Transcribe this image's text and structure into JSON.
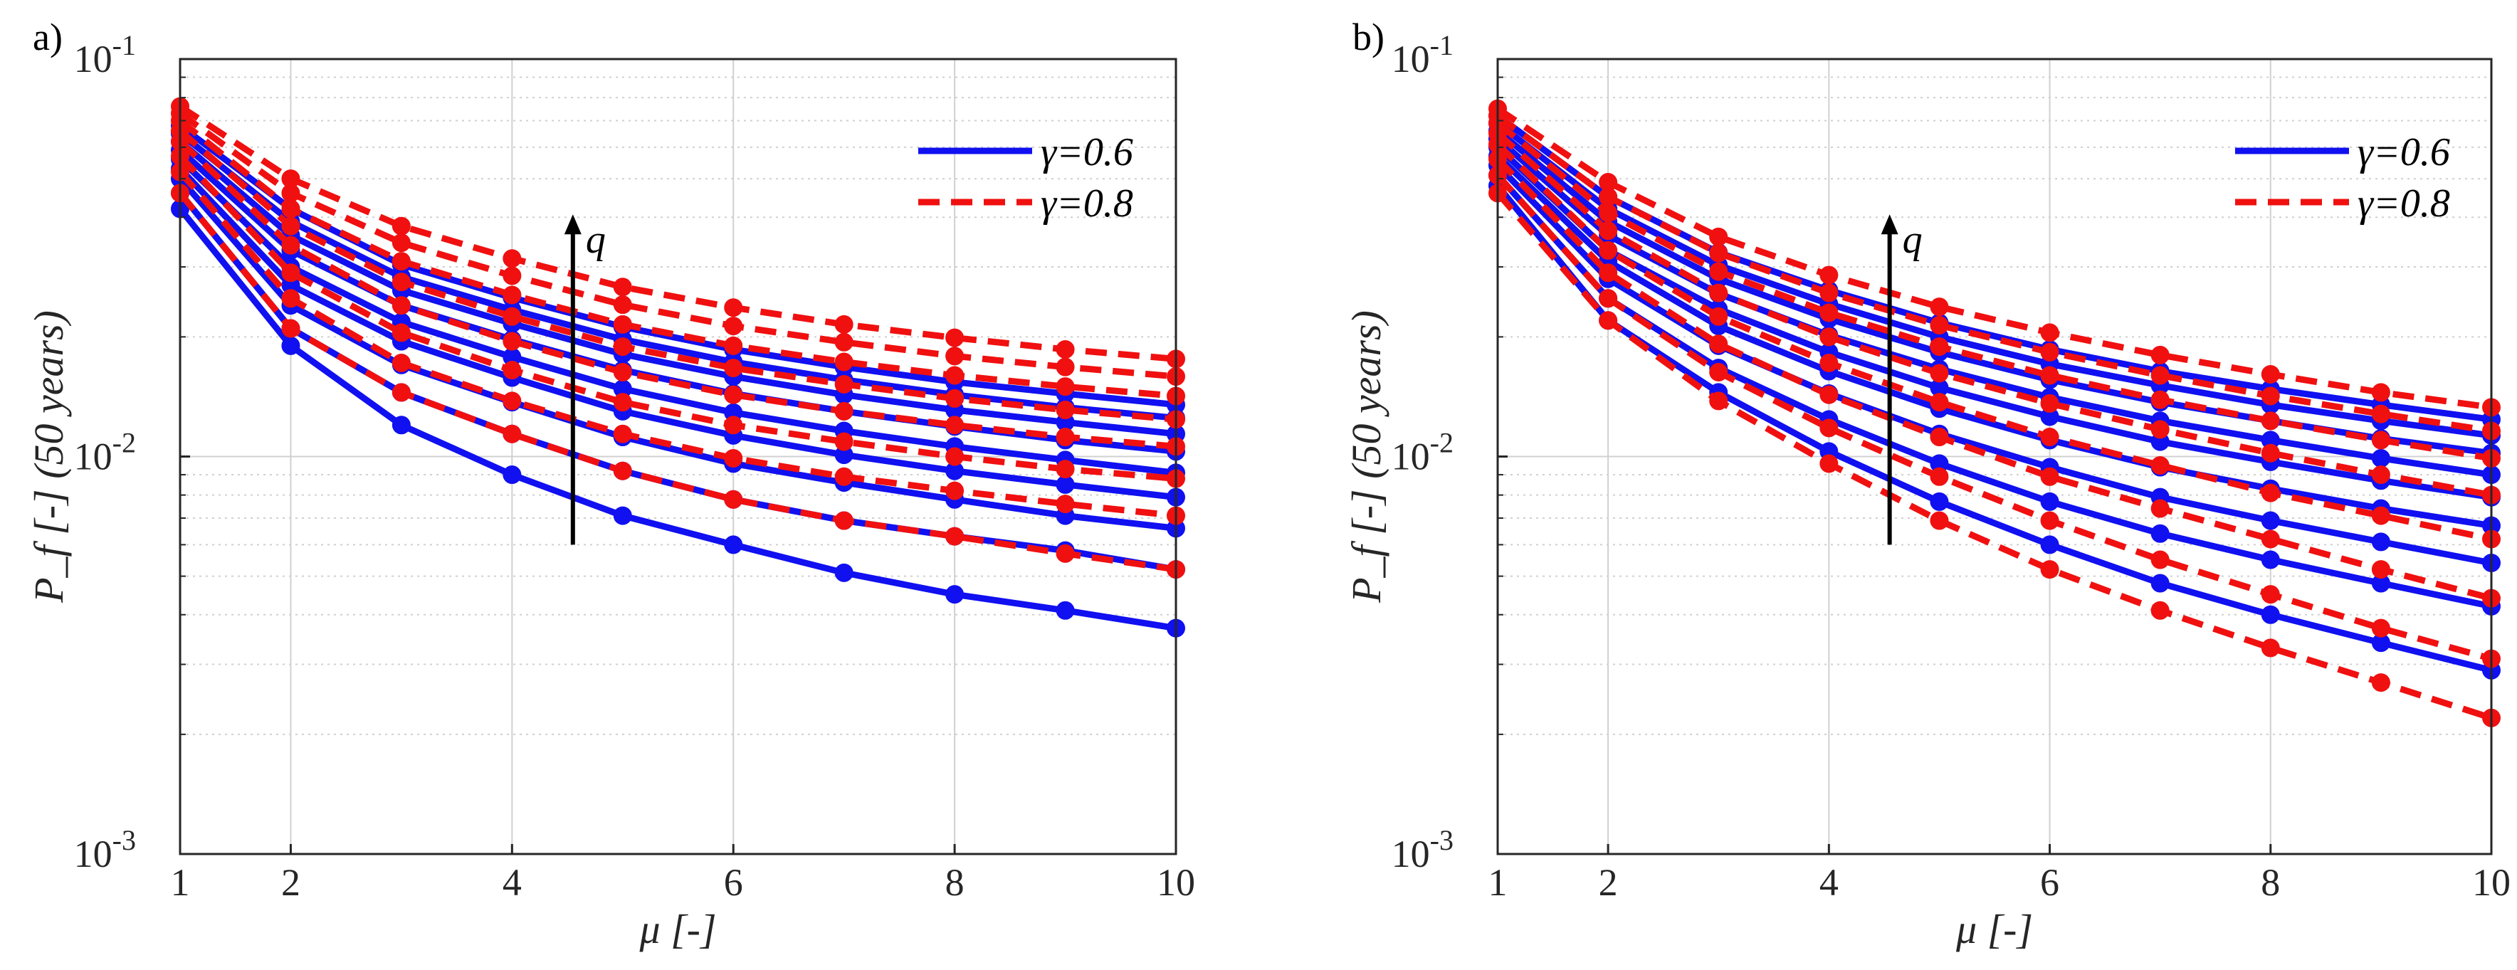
{
  "chart_data": [
    {
      "type": "line",
      "panel_label": "a)",
      "xlabel": "μ [-]",
      "ylabel": "P_f [-] (50 years)",
      "xlim": [
        1,
        10
      ],
      "ylim": [
        0.001,
        0.1
      ],
      "yscale": "log",
      "x_ticks": [
        "1",
        "2",
        "4",
        "6",
        "8",
        "10"
      ],
      "x_tick_values": [
        1,
        2,
        4,
        6,
        8,
        10
      ],
      "y_ticks": [
        {
          "base": "10",
          "exp": "-3"
        },
        {
          "base": "10",
          "exp": "-2"
        },
        {
          "base": "10",
          "exp": "-1"
        }
      ],
      "grid": true,
      "legend": {
        "position": "top-right",
        "entries": [
          "γ=0.6",
          "γ=0.8"
        ]
      },
      "annotation": {
        "text": "q",
        "x": 4.55,
        "y_from": 0.006,
        "y_to": 0.04
      },
      "x": [
        1,
        2,
        3,
        4,
        5,
        6,
        7,
        8,
        9,
        10
      ],
      "series": [
        {
          "name": "γ=0.6",
          "group": "blue",
          "values": [
            0.042,
            0.019,
            0.012,
            0.009,
            0.0071,
            0.006,
            0.0051,
            0.0045,
            0.0041,
            0.0037
          ]
        },
        {
          "name": "γ=0.6",
          "group": "blue",
          "values": [
            0.046,
            0.021,
            0.0145,
            0.0114,
            0.0092,
            0.0078,
            0.0069,
            0.0063,
            0.0058,
            0.0052
          ]
        },
        {
          "name": "γ=0.6",
          "group": "blue",
          "values": [
            0.05,
            0.024,
            0.017,
            0.0137,
            0.0112,
            0.0096,
            0.0086,
            0.0078,
            0.0071,
            0.0066
          ]
        },
        {
          "name": "γ=0.6",
          "group": "blue",
          "values": [
            0.053,
            0.027,
            0.0195,
            0.0158,
            0.013,
            0.0113,
            0.0101,
            0.0092,
            0.0085,
            0.0079
          ]
        },
        {
          "name": "γ=0.6",
          "group": "blue",
          "values": [
            0.056,
            0.03,
            0.0218,
            0.0178,
            0.0148,
            0.0129,
            0.0116,
            0.0106,
            0.0098,
            0.0091
          ]
        },
        {
          "name": "γ=0.6",
          "group": "blue",
          "values": [
            0.059,
            0.033,
            0.024,
            0.0197,
            0.0165,
            0.0144,
            0.013,
            0.0119,
            0.011,
            0.0103
          ]
        },
        {
          "name": "γ=0.6",
          "group": "blue",
          "values": [
            0.062,
            0.036,
            0.0262,
            0.0216,
            0.0181,
            0.0159,
            0.0143,
            0.0131,
            0.0122,
            0.0114
          ]
        },
        {
          "name": "γ=0.6",
          "group": "blue",
          "values": [
            0.065,
            0.039,
            0.0283,
            0.0234,
            0.0197,
            0.0173,
            0.0156,
            0.0143,
            0.0133,
            0.0125
          ]
        },
        {
          "name": "γ=0.6",
          "group": "blue",
          "values": [
            0.068,
            0.042,
            0.0304,
            0.0251,
            0.0212,
            0.0186,
            0.0168,
            0.0154,
            0.0144,
            0.0135
          ]
        },
        {
          "name": "γ=0.8",
          "group": "red",
          "values": [
            0.046,
            0.021,
            0.0145,
            0.0114,
            0.0092,
            0.0078,
            0.0069,
            0.0063,
            0.0057,
            0.0052
          ]
        },
        {
          "name": "γ=0.8",
          "group": "red",
          "values": [
            0.052,
            0.025,
            0.0172,
            0.0138,
            0.0114,
            0.0099,
            0.0089,
            0.0082,
            0.0076,
            0.0071
          ]
        },
        {
          "name": "γ=0.8",
          "group": "red",
          "values": [
            0.057,
            0.029,
            0.0205,
            0.0165,
            0.0137,
            0.012,
            0.0109,
            0.01,
            0.0093,
            0.0088
          ]
        },
        {
          "name": "γ=0.8",
          "group": "red",
          "values": [
            0.062,
            0.034,
            0.024,
            0.0195,
            0.0163,
            0.0143,
            0.013,
            0.012,
            0.0112,
            0.0106
          ]
        },
        {
          "name": "γ=0.8",
          "group": "red",
          "values": [
            0.066,
            0.038,
            0.0275,
            0.0225,
            0.0189,
            0.0167,
            0.0152,
            0.014,
            0.0131,
            0.0124
          ]
        },
        {
          "name": "γ=0.8",
          "group": "red",
          "values": [
            0.07,
            0.042,
            0.031,
            0.0255,
            0.0215,
            0.019,
            0.0173,
            0.016,
            0.015,
            0.0142
          ]
        },
        {
          "name": "γ=0.8",
          "group": "red",
          "values": [
            0.073,
            0.046,
            0.0345,
            0.0285,
            0.0241,
            0.0213,
            0.0194,
            0.0179,
            0.0168,
            0.0159
          ]
        },
        {
          "name": "γ=0.8",
          "group": "red",
          "values": [
            0.076,
            0.05,
            0.038,
            0.0315,
            0.0267,
            0.0237,
            0.0215,
            0.0199,
            0.0186,
            0.0176
          ]
        }
      ]
    },
    {
      "type": "line",
      "panel_label": "b)",
      "xlabel": "μ [-]",
      "ylabel": "P_f [-] (50 years)",
      "xlim": [
        1,
        10
      ],
      "ylim": [
        0.001,
        0.1
      ],
      "yscale": "log",
      "x_ticks": [
        "1",
        "2",
        "4",
        "6",
        "8",
        "10"
      ],
      "x_tick_values": [
        1,
        2,
        4,
        6,
        8,
        10
      ],
      "y_ticks": [
        {
          "base": "10",
          "exp": "-3"
        },
        {
          "base": "10",
          "exp": "-2"
        },
        {
          "base": "10",
          "exp": "-1"
        }
      ],
      "grid": true,
      "legend": {
        "position": "top-right",
        "entries": [
          "γ=0.6",
          "γ=0.8"
        ]
      },
      "annotation": {
        "text": "q",
        "x": 4.55,
        "y_from": 0.006,
        "y_to": 0.04
      },
      "x": [
        1,
        2,
        3,
        4,
        5,
        6,
        7,
        8,
        9,
        10
      ],
      "series": [
        {
          "name": "γ=0.6",
          "group": "blue",
          "values": [
            0.048,
            0.022,
            0.0145,
            0.0103,
            0.0077,
            0.006,
            0.0048,
            0.004,
            0.0034,
            0.0029
          ]
        },
        {
          "name": "γ=0.6",
          "group": "blue",
          "values": [
            0.051,
            0.025,
            0.0167,
            0.0124,
            0.0096,
            0.0077,
            0.0064,
            0.0055,
            0.0048,
            0.0042
          ]
        },
        {
          "name": "γ=0.6",
          "group": "blue",
          "values": [
            0.054,
            0.028,
            0.019,
            0.0144,
            0.0114,
            0.0094,
            0.0079,
            0.0069,
            0.0061,
            0.0054
          ]
        },
        {
          "name": "γ=0.6",
          "group": "blue",
          "values": [
            0.057,
            0.031,
            0.0213,
            0.0164,
            0.0132,
            0.011,
            0.0094,
            0.0083,
            0.0074,
            0.0067
          ]
        },
        {
          "name": "γ=0.6",
          "group": "blue",
          "values": [
            0.06,
            0.033,
            0.0235,
            0.0183,
            0.0149,
            0.0126,
            0.0109,
            0.0097,
            0.0087,
            0.0079
          ]
        },
        {
          "name": "γ=0.6",
          "group": "blue",
          "values": [
            0.063,
            0.036,
            0.0257,
            0.0202,
            0.0166,
            0.0141,
            0.0123,
            0.011,
            0.0099,
            0.009
          ]
        },
        {
          "name": "γ=0.6",
          "group": "blue",
          "values": [
            0.066,
            0.039,
            0.028,
            0.0222,
            0.0183,
            0.0156,
            0.0137,
            0.0123,
            0.0111,
            0.0102
          ]
        },
        {
          "name": "γ=0.6",
          "group": "blue",
          "values": [
            0.069,
            0.042,
            0.0303,
            0.0242,
            0.02,
            0.0171,
            0.0151,
            0.0135,
            0.0123,
            0.0113
          ]
        },
        {
          "name": "γ=0.6",
          "group": "blue",
          "values": [
            0.072,
            0.045,
            0.0326,
            0.0262,
            0.0217,
            0.0186,
            0.0164,
            0.0148,
            0.0135,
            0.0124
          ]
        },
        {
          "name": "γ=0.8",
          "group": "red",
          "values": [
            0.046,
            0.022,
            0.0138,
            0.0096,
            0.0069,
            0.0052,
            0.0041,
            0.0033,
            0.0027,
            0.0022
          ]
        },
        {
          "name": "γ=0.8",
          "group": "red",
          "values": [
            0.051,
            0.025,
            0.0163,
            0.0118,
            0.0089,
            0.0069,
            0.0055,
            0.0045,
            0.0037,
            0.0031
          ]
        },
        {
          "name": "γ=0.8",
          "group": "red",
          "values": [
            0.056,
            0.029,
            0.0192,
            0.0143,
            0.0112,
            0.0089,
            0.0074,
            0.0062,
            0.0052,
            0.0044
          ]
        },
        {
          "name": "γ=0.8",
          "group": "red",
          "values": [
            0.061,
            0.033,
            0.0225,
            0.0172,
            0.0137,
            0.0112,
            0.0095,
            0.0081,
            0.0071,
            0.0062
          ]
        },
        {
          "name": "γ=0.8",
          "group": "red",
          "values": [
            0.065,
            0.037,
            0.0258,
            0.02,
            0.0162,
            0.0136,
            0.0117,
            0.0102,
            0.009,
            0.008
          ]
        },
        {
          "name": "γ=0.8",
          "group": "red",
          "values": [
            0.069,
            0.041,
            0.0292,
            0.023,
            0.0189,
            0.016,
            0.0139,
            0.0123,
            0.011,
            0.0099
          ]
        },
        {
          "name": "γ=0.8",
          "group": "red",
          "values": [
            0.072,
            0.045,
            0.0325,
            0.0258,
            0.0214,
            0.0183,
            0.016,
            0.0142,
            0.0128,
            0.0116
          ]
        },
        {
          "name": "γ=0.8",
          "group": "red",
          "values": [
            0.075,
            0.049,
            0.0357,
            0.0286,
            0.0238,
            0.0205,
            0.018,
            0.0161,
            0.0145,
            0.0133
          ]
        }
      ]
    }
  ],
  "colors": {
    "blue_series": "#1010f0",
    "red_series": "#f01010",
    "grid": "#d0d0d0",
    "axis": "#262626",
    "arrow": "#000000"
  }
}
